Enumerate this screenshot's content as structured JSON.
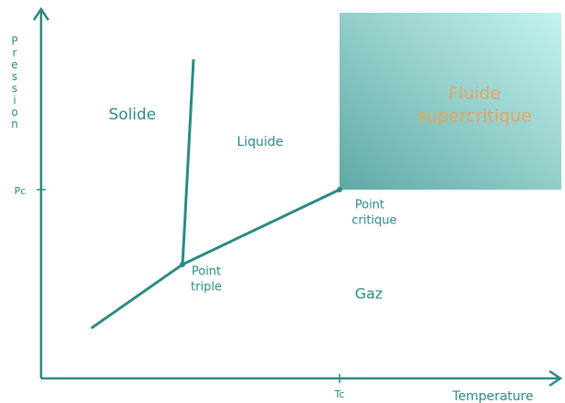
{
  "axes": {
    "y_label": "Pression",
    "x_label": "Temperature",
    "y_tick": "Pc",
    "x_tick": "Tc"
  },
  "regions": {
    "solid": "Solide",
    "liquid": "Liquide",
    "gas": "Gaz",
    "supercritical": [
      "Fluide",
      "supercritique"
    ]
  },
  "points": {
    "critical": [
      "Point",
      "critique"
    ],
    "triple": [
      "Point",
      "triple"
    ]
  }
}
